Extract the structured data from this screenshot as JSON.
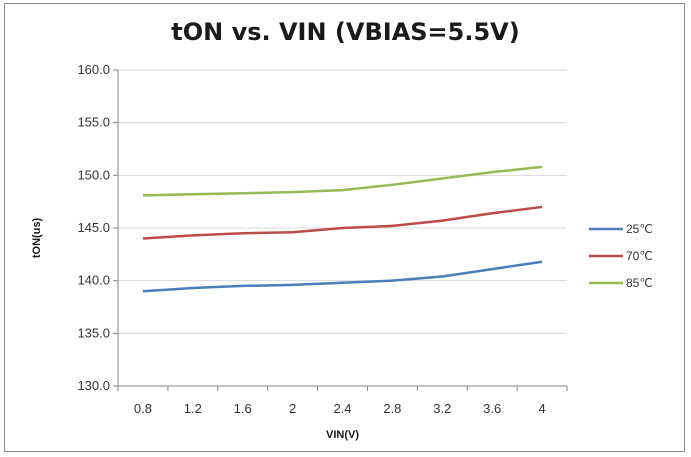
{
  "chart_data": {
    "type": "line",
    "title": "tON vs. VIN (VBIAS=5.5V)",
    "xlabel": "VIN(V)",
    "ylabel": "tON(us)",
    "categories": [
      "0.8",
      "1.2",
      "1.6",
      "2",
      "2.4",
      "2.8",
      "3.2",
      "3.6",
      "4"
    ],
    "ylim": [
      130.0,
      160.0
    ],
    "yticks": [
      "130.0",
      "135.0",
      "140.0",
      "145.0",
      "150.0",
      "155.0",
      "160.0"
    ],
    "grid": true,
    "legend_position": "right",
    "series": [
      {
        "name": "25℃",
        "color": "#4a7ebb",
        "values": [
          139.0,
          139.3,
          139.5,
          139.6,
          139.8,
          140.0,
          140.4,
          141.1,
          141.8
        ]
      },
      {
        "name": "70℃",
        "color": "#be4b48",
        "values": [
          144.0,
          144.3,
          144.5,
          144.6,
          145.0,
          145.2,
          145.7,
          146.4,
          147.0
        ]
      },
      {
        "name": "85℃",
        "color": "#98b954",
        "values": [
          148.1,
          148.2,
          148.3,
          148.4,
          148.6,
          149.1,
          149.7,
          150.3,
          150.8
        ]
      }
    ]
  }
}
